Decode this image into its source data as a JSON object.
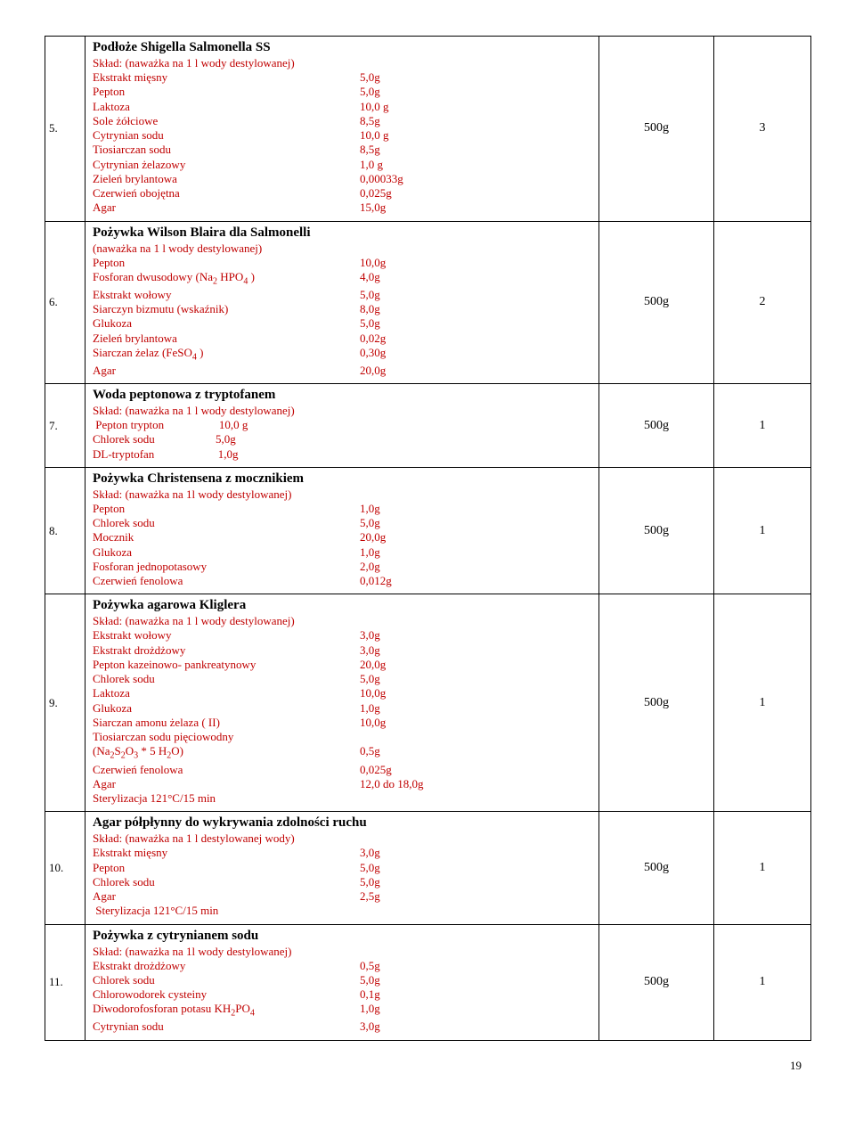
{
  "page_number": "19",
  "rows": [
    {
      "num": "5.",
      "title": "Podłoże Shigella Salmonella SS",
      "composition_label": "Skład: (naważka na 1 l wody destylowanej)",
      "components": [
        {
          "label": "Ekstrakt mięsny",
          "value": "5,0g"
        },
        {
          "label": "Pepton",
          "value": "5,0g"
        },
        {
          "label": "Laktoza",
          "value": "10,0 g"
        },
        {
          "label": "Sole żółciowe",
          "value": "8,5g"
        },
        {
          "label": "Cytrynian sodu",
          "value": "10,0 g"
        },
        {
          "label": "Tiosiarczan sodu",
          "value": "8,5g"
        },
        {
          "label": "Cytrynian żelazowy",
          "value": "1,0 g"
        },
        {
          "label": "Zieleń brylantowa",
          "value": "0,00033g"
        },
        {
          "label": "Czerwień obojętna",
          "value": "0,025g"
        },
        {
          "label": "Agar",
          "value": "15,0g"
        }
      ],
      "qty": "500g",
      "cnt": "3"
    },
    {
      "num": "6.",
      "title": "Pożywka Wilson Blaira dla Salmonelli",
      "composition_label": "(naważka na 1 l wody destylowanej)",
      "components": [
        {
          "label": "Pepton",
          "value": "10,0g"
        },
        {
          "label": "Fosforan dwusodowy (Na<sub>2</sub> HPO<sub>4</sub> )",
          "value": "4,0g"
        },
        {
          "label": "Ekstrakt wołowy",
          "value": "5,0g"
        },
        {
          "label": "Siarczyn bizmutu (wskaźnik)",
          "value": "8,0g"
        },
        {
          "label": "Glukoza",
          "value": "5,0g"
        },
        {
          "label": "Zieleń brylantowa",
          "value": "0,02g"
        },
        {
          "label": "Siarczan żelaz (FeSO<sub>4</sub> )",
          "value": "0,30g"
        },
        {
          "label": "Agar",
          "value": "20,0g"
        }
      ],
      "qty": "500g",
      "cnt": "2"
    },
    {
      "num": "7.",
      "title": "Woda peptonowa z tryptofanem",
      "composition_label": "Skład: (naważka na 1 l wody destylowanej)",
      "components": [
        {
          "label": " Pepton trypton                   10,0 g",
          "value": ""
        },
        {
          "label": "Chlorek sodu                     5,0g",
          "value": ""
        },
        {
          "label": "DL-tryptofan                      1,0g",
          "value": ""
        }
      ],
      "qty": "500g",
      "cnt": "1"
    },
    {
      "num": "8.",
      "title": "Pożywka Christensena z mocznikiem",
      "composition_label": "Skład: (naważka na 1l wody destylowanej)",
      "components": [
        {
          "label": "Pepton",
          "value": "1,0g"
        },
        {
          "label": "Chlorek sodu",
          "value": "5,0g"
        },
        {
          "label": "Mocznik",
          "value": "20,0g"
        },
        {
          "label": "Glukoza",
          "value": "1,0g"
        },
        {
          "label": "Fosforan jednopotasowy",
          "value": "2,0g"
        },
        {
          "label": "Czerwień fenolowa",
          "value": "0,012g"
        }
      ],
      "qty": "500g",
      "cnt": "1"
    },
    {
      "num": "9.",
      "title": "Pożywka agarowa Kliglera",
      "composition_label": "Skład: (naważka na 1 l wody destylowanej)",
      "components": [
        {
          "label": "Ekstrakt wołowy",
          "value": "3,0g"
        },
        {
          "label": "Ekstrakt drożdżowy",
          "value": "3,0g"
        },
        {
          "label": "Pepton kazeinowo- pankreatynowy",
          "value": "20,0g"
        },
        {
          "label": "Chlorek sodu",
          "value": "5,0g"
        },
        {
          "label": "Laktoza",
          "value": "10,0g"
        },
        {
          "label": "Glukoza",
          "value": "1,0g"
        },
        {
          "label": "Siarczan amonu żelaza ( II)",
          "value": "10,0g"
        },
        {
          "label": "Tiosiarczan sodu pięciowodny",
          "value": ""
        },
        {
          "label": "(Na<sub>2</sub>S<sub>2</sub>O<sub>3</sub> * 5 H<sub>2</sub>O)",
          "value": "0,5g"
        },
        {
          "label": "Czerwień fenolowa",
          "value": "0,025g"
        },
        {
          "label": "Agar",
          "value": "12,0 do 18,0g"
        },
        {
          "label": "Sterylizacja 121°C/15 min",
          "value": ""
        }
      ],
      "qty": "500g",
      "cnt": "1"
    },
    {
      "num": "10.",
      "title": "Agar półpłynny do wykrywania zdolności ruchu",
      "composition_label": "Skład: (naważka  na 1 l destylowanej wody)",
      "components": [
        {
          "label": "Ekstrakt mięsny",
          "value": "3,0g"
        },
        {
          "label": "Pepton",
          "value": "5,0g"
        },
        {
          "label": "Chlorek sodu",
          "value": "5,0g"
        },
        {
          "label": "Agar",
          "value": "2,5g"
        },
        {
          "label": " Sterylizacja 121°C/15 min",
          "value": ""
        }
      ],
      "qty": "500g",
      "cnt": "1"
    },
    {
      "num": "11.",
      "title": "Pożywka z cytrynianem sodu",
      "composition_label": "Skład: (naważka na 1l wody destylowanej)",
      "components": [
        {
          "label": "Ekstrakt drożdżowy",
          "value": "0,5g"
        },
        {
          "label": "Chlorek sodu",
          "value": "5,0g"
        },
        {
          "label": "Chlorowodorek cysteiny",
          "value": "0,1g"
        },
        {
          "label": "Diwodorofosforan potasu KH<sub>2</sub>PO<sub>4</sub>",
          "value": "1,0g"
        },
        {
          "label": "Cytrynian sodu",
          "value": "3,0g"
        }
      ],
      "qty": "500g",
      "cnt": "1"
    }
  ]
}
